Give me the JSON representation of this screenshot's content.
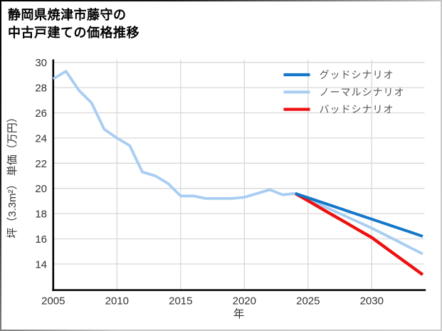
{
  "title": {
    "line1": "静岡県焼津市藤守の",
    "line2": "中古戸建ての価格推移"
  },
  "colors": {
    "good_blue": "#1577c9",
    "normal_light_blue": "#a8cdf2",
    "bad_red": "#ee1010",
    "grid": "#d8d8d8",
    "spine": "#000000",
    "tick_text": "#333333",
    "axis_label_text": "#333333",
    "legend_text": "#555555",
    "title_text": "#000000",
    "background": "#ffffff"
  },
  "chart_data": {
    "type": "line",
    "title": "静岡県焼津市藤守の中古戸建ての価格推移",
    "xlabel": "年",
    "ylabel": "坪（3.3m²） 単価（万円）",
    "xlim": [
      2005,
      2034.2
    ],
    "ylim": [
      12,
      30.2
    ],
    "x_ticks": [
      2005,
      2010,
      2015,
      2020,
      2025,
      2030
    ],
    "y_ticks": [
      14,
      16,
      18,
      20,
      22,
      24,
      26,
      28,
      30
    ],
    "grid": true,
    "legend_position": "top-right-inside",
    "forecast_start_year": 2024,
    "series": [
      {
        "name": "グッドシナリオ",
        "color": "#1577c9",
        "stroke_width": 4,
        "z": 3,
        "x": [
          2024,
          2025,
          2026,
          2027,
          2028,
          2029,
          2030,
          2031,
          2032,
          2033,
          2034
        ],
        "values": [
          19.6,
          19.26,
          18.92,
          18.58,
          18.24,
          17.9,
          17.56,
          17.22,
          16.88,
          16.54,
          16.2
        ]
      },
      {
        "name": "ノーマルシナリオ",
        "color": "#a8cdf2",
        "stroke_width": 3.8,
        "z": 1,
        "x": [
          2005,
          2006,
          2007,
          2008,
          2009,
          2010,
          2011,
          2012,
          2013,
          2014,
          2015,
          2016,
          2017,
          2018,
          2019,
          2020,
          2021,
          2022,
          2023,
          2024,
          2025,
          2026,
          2027,
          2028,
          2029,
          2030,
          2031,
          2032,
          2033,
          2034
        ],
        "values": [
          28.7,
          29.3,
          27.8,
          26.8,
          24.7,
          24.0,
          23.4,
          21.3,
          21.0,
          20.4,
          19.4,
          19.4,
          19.2,
          19.2,
          19.2,
          19.3,
          19.6,
          19.9,
          19.5,
          19.6,
          19.14,
          18.68,
          18.23,
          17.77,
          17.31,
          16.85,
          16.34,
          15.83,
          15.31,
          14.8
        ]
      },
      {
        "name": "バッドシナリオ",
        "color": "#ee1010",
        "stroke_width": 4.4,
        "z": 2,
        "x": [
          2024,
          2025,
          2026,
          2027,
          2028,
          2029,
          2030,
          2031,
          2032,
          2033,
          2034
        ],
        "values": [
          19.6,
          19.02,
          18.43,
          17.85,
          17.27,
          16.68,
          16.1,
          15.36,
          14.62,
          13.89,
          13.15
        ]
      }
    ]
  }
}
